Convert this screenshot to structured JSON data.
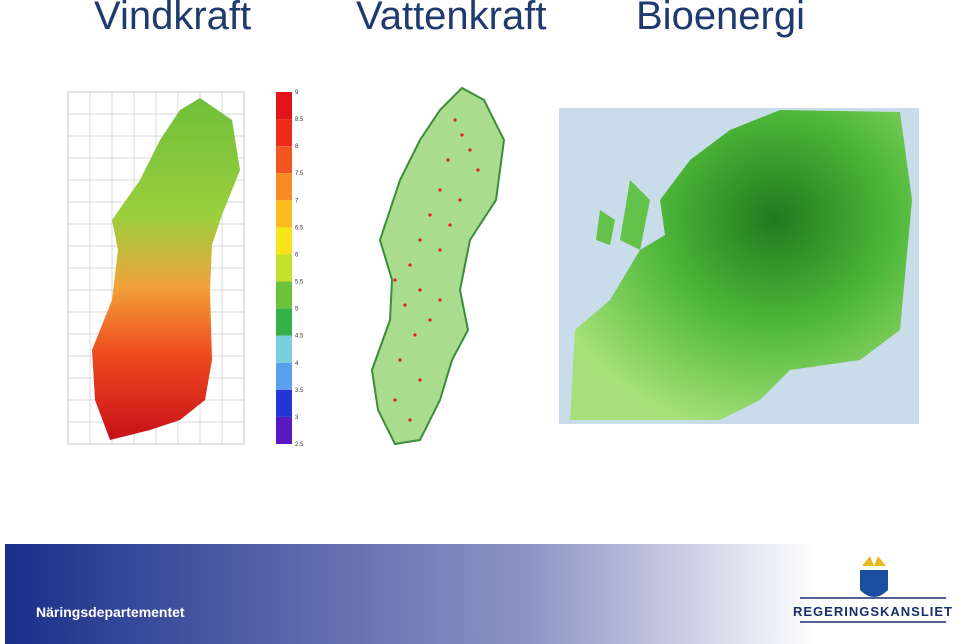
{
  "header": {
    "titles": [
      "Vindkraft",
      "Vattenkraft",
      "Bioenergi"
    ]
  },
  "wind_legend": {
    "labels": [
      "9",
      "8.5",
      "8",
      "7.5",
      "7",
      "6.5",
      "6",
      "5.5",
      "5",
      "4.5",
      "4",
      "3.5",
      "3",
      "2.5"
    ]
  },
  "footer": {
    "department": "Näringsdepartementet",
    "logo_text": "REGERINGSKANSLIET"
  }
}
